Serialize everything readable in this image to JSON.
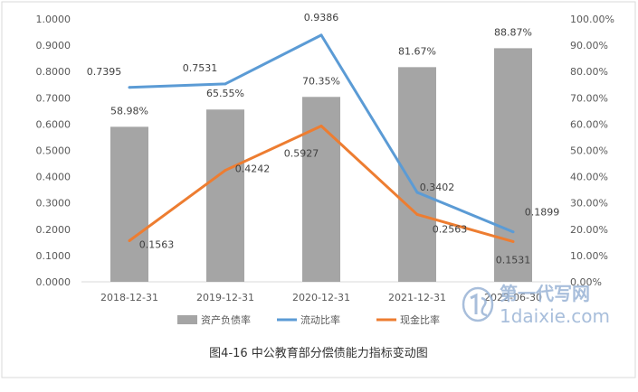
{
  "chart_data": {
    "type": "bar",
    "title": "",
    "caption": "图4-16 中公教育部分偿债能力指标变动图",
    "categories": [
      "2018-12-31",
      "2019-12-31",
      "2020-12-31",
      "2021-12-31",
      "2022-06-30"
    ],
    "y_left": {
      "min": 0,
      "max": 1,
      "step": 0.1,
      "tick_labels": [
        "0.0000",
        "0.1000",
        "0.2000",
        "0.3000",
        "0.4000",
        "0.5000",
        "0.6000",
        "0.7000",
        "0.8000",
        "0.9000",
        "1.0000"
      ]
    },
    "y_right": {
      "min": 0,
      "max": 100,
      "step": 10,
      "tick_labels": [
        "0.00%",
        "10.00%",
        "20.00%",
        "30.00%",
        "40.00%",
        "50.00%",
        "60.00%",
        "70.00%",
        "80.00%",
        "90.00%",
        "100.00%"
      ]
    },
    "series": [
      {
        "name": "资产负债率",
        "kind": "bar",
        "axis": "right",
        "color": "#a5a5a5",
        "values": [
          58.98,
          65.55,
          70.35,
          81.67,
          88.87
        ],
        "labels": [
          "58.98%",
          "65.55%",
          "70.35%",
          "81.67%",
          "88.87%"
        ]
      },
      {
        "name": "流动比率",
        "kind": "line",
        "axis": "left",
        "color": "#5b9bd5",
        "values": [
          0.7395,
          0.7531,
          0.9386,
          0.3402,
          0.1899
        ],
        "labels": [
          "0.7395",
          "0.7531",
          "0.9386",
          "0.3402",
          "0.1899"
        ]
      },
      {
        "name": "现金比率",
        "kind": "line",
        "axis": "left",
        "color": "#ed7d31",
        "values": [
          0.1563,
          0.4242,
          0.5927,
          0.2563,
          0.1531
        ],
        "labels": [
          "0.1563",
          "0.4242",
          "0.5927",
          "0.2563",
          "0.1531"
        ]
      }
    ],
    "grid": false,
    "legend_position": "bottom"
  },
  "watermark": {
    "line1": "第一代写网",
    "line2": "1daixie.com",
    "color": "#9fb8d8"
  }
}
